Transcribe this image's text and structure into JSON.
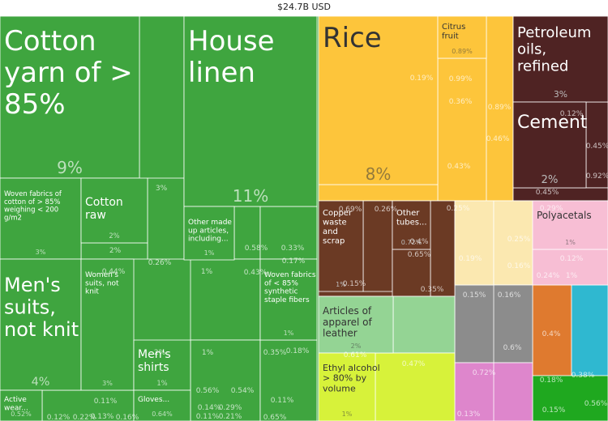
{
  "header": {
    "total": "$24.7B USD"
  },
  "colors": {
    "textiles": "#3fa53f",
    "textiles_light": "#5fb55f",
    "vegetable": "#fdc53b",
    "minerals": "#4f2323",
    "metals": "#6b3a24",
    "plastics": "#f7bed4",
    "chemicals_blue": "#2fb8d0",
    "leather": "#94d494",
    "foodstuffs": "#d7f23a",
    "stone": "#fbe8b0",
    "machines": "#8c8c8c",
    "instruments": "#de86cc",
    "transport": "#df7a2f",
    "misc": "#1fa81f",
    "red": "#ee1c1c"
  },
  "chart_data": {
    "type": "treemap",
    "title": "$24.7B USD",
    "unit": "percent of total exports",
    "items": [
      {
        "name": "Cotton yarn of > 85%",
        "share": "9%",
        "group": "textiles"
      },
      {
        "name": "House linen",
        "share": "11%",
        "group": "textiles"
      },
      {
        "name": "Woven fabrics of cotton of > 85% weighing < 200 g/m2",
        "share": "3%",
        "group": "textiles"
      },
      {
        "name": "Cotton raw",
        "share": "2%",
        "group": "textiles"
      },
      {
        "name": "Other made up articles, including...",
        "share": "1%",
        "group": "textiles"
      },
      {
        "name": "Men's suits, not knit",
        "share": "4%",
        "group": "textiles"
      },
      {
        "name": "Women's suits, not knit",
        "share": "3%",
        "group": "textiles"
      },
      {
        "name": "Men's shirts",
        "share": "1%",
        "group": "textiles"
      },
      {
        "name": "Woven fabrics of < 85% synthetic staple fibers",
        "share": "1%",
        "group": "textiles"
      },
      {
        "name": "Active wear...",
        "share": "0.52%",
        "group": "textiles"
      },
      {
        "name": "Gloves...",
        "share": "0.64%",
        "group": "textiles"
      },
      {
        "name": "Rice",
        "share": "8%",
        "group": "vegetable"
      },
      {
        "name": "Citrus fruit",
        "share": "0.89%",
        "group": "vegetable"
      },
      {
        "name": "Petroleum oils, refined",
        "share": "3%",
        "group": "minerals"
      },
      {
        "name": "Cement",
        "share": "2%",
        "group": "minerals"
      },
      {
        "name": "Copper waste and scrap",
        "share": "1%",
        "group": "metals"
      },
      {
        "name": "Other tubes...",
        "share": "0.72%",
        "group": "metals"
      },
      {
        "name": "Polyacetals",
        "share": "1%",
        "group": "plastics"
      },
      {
        "name": "Articles of apparel of leather",
        "share": "2%",
        "group": "leather"
      },
      {
        "name": "Ethyl alcohol > 80% by volume",
        "share": "1%",
        "group": "foodstuffs"
      }
    ],
    "other_values": [
      "3%",
      "0.44%",
      "0.26%",
      "2%",
      "1%",
      "0.58%",
      "0.33%",
      "0.43%",
      "0.17%",
      "2%",
      "1%",
      "0.35%",
      "0.18%",
      "0.56%",
      "0.54%",
      "0.14%",
      "0.29%",
      "0.11%",
      "0.21%",
      "0.11%",
      "0.65%",
      "0.12%",
      "0.22%",
      "0.13%",
      "0.11%",
      "0.16%",
      "0.12%",
      "0.45%",
      "0.19%",
      "0.99%",
      "0.36%",
      "0.89%",
      "0.46%",
      "0.43%",
      "0.69%",
      "0.26%",
      "0.25%",
      "0.45%",
      "0.92%",
      "0.29%",
      "0.15%",
      "0.65%",
      "0.4%",
      "0.35%",
      "0.19%",
      "0.25%",
      "0.16%",
      "0.15%",
      "0.16%",
      "0.12%",
      "0.24%",
      "1%",
      "0.61%",
      "0.47%",
      "0.72%",
      "0.6%",
      "0.4%",
      "0.18%",
      "0.38%",
      "0.15%",
      "0.56%",
      "0.13%"
    ]
  }
}
